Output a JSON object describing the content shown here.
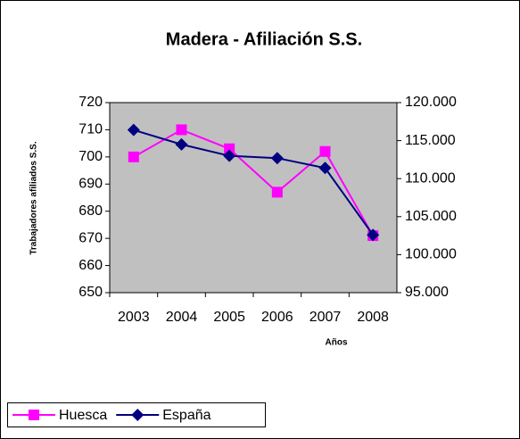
{
  "chart_data": {
    "type": "line",
    "title": "Madera - Afiliación S.S.",
    "x_label": "Años",
    "y_label": "Trabajadores afiliados S.S.",
    "categories": [
      "2003",
      "2004",
      "2005",
      "2006",
      "2007",
      "2008"
    ],
    "series": [
      {
        "name": "Huesca",
        "color": "#ff00ff",
        "marker": "square",
        "values": [
          700,
          710,
          703,
          687,
          702,
          671
        ]
      },
      {
        "name": "España",
        "color": "#000080",
        "marker": "diamond",
        "axis": "y2",
        "values": [
          116400,
          114500,
          113000,
          112700,
          111400,
          102600
        ]
      }
    ],
    "ylim": [
      650,
      720
    ],
    "yticks": [
      650,
      660,
      670,
      680,
      690,
      700,
      710,
      720
    ],
    "y2lim": [
      95000,
      120000
    ],
    "y2ticks": [
      {
        "value": 95000,
        "label": "95.000"
      },
      {
        "value": 100000,
        "label": "100.000"
      },
      {
        "value": 105000,
        "label": "105.000"
      },
      {
        "value": 110000,
        "label": "110.000"
      },
      {
        "value": 115000,
        "label": "115.000"
      },
      {
        "value": 120000,
        "label": "120.000"
      }
    ],
    "plot_background": "#c0c0c0",
    "legend": "bottom-left"
  }
}
